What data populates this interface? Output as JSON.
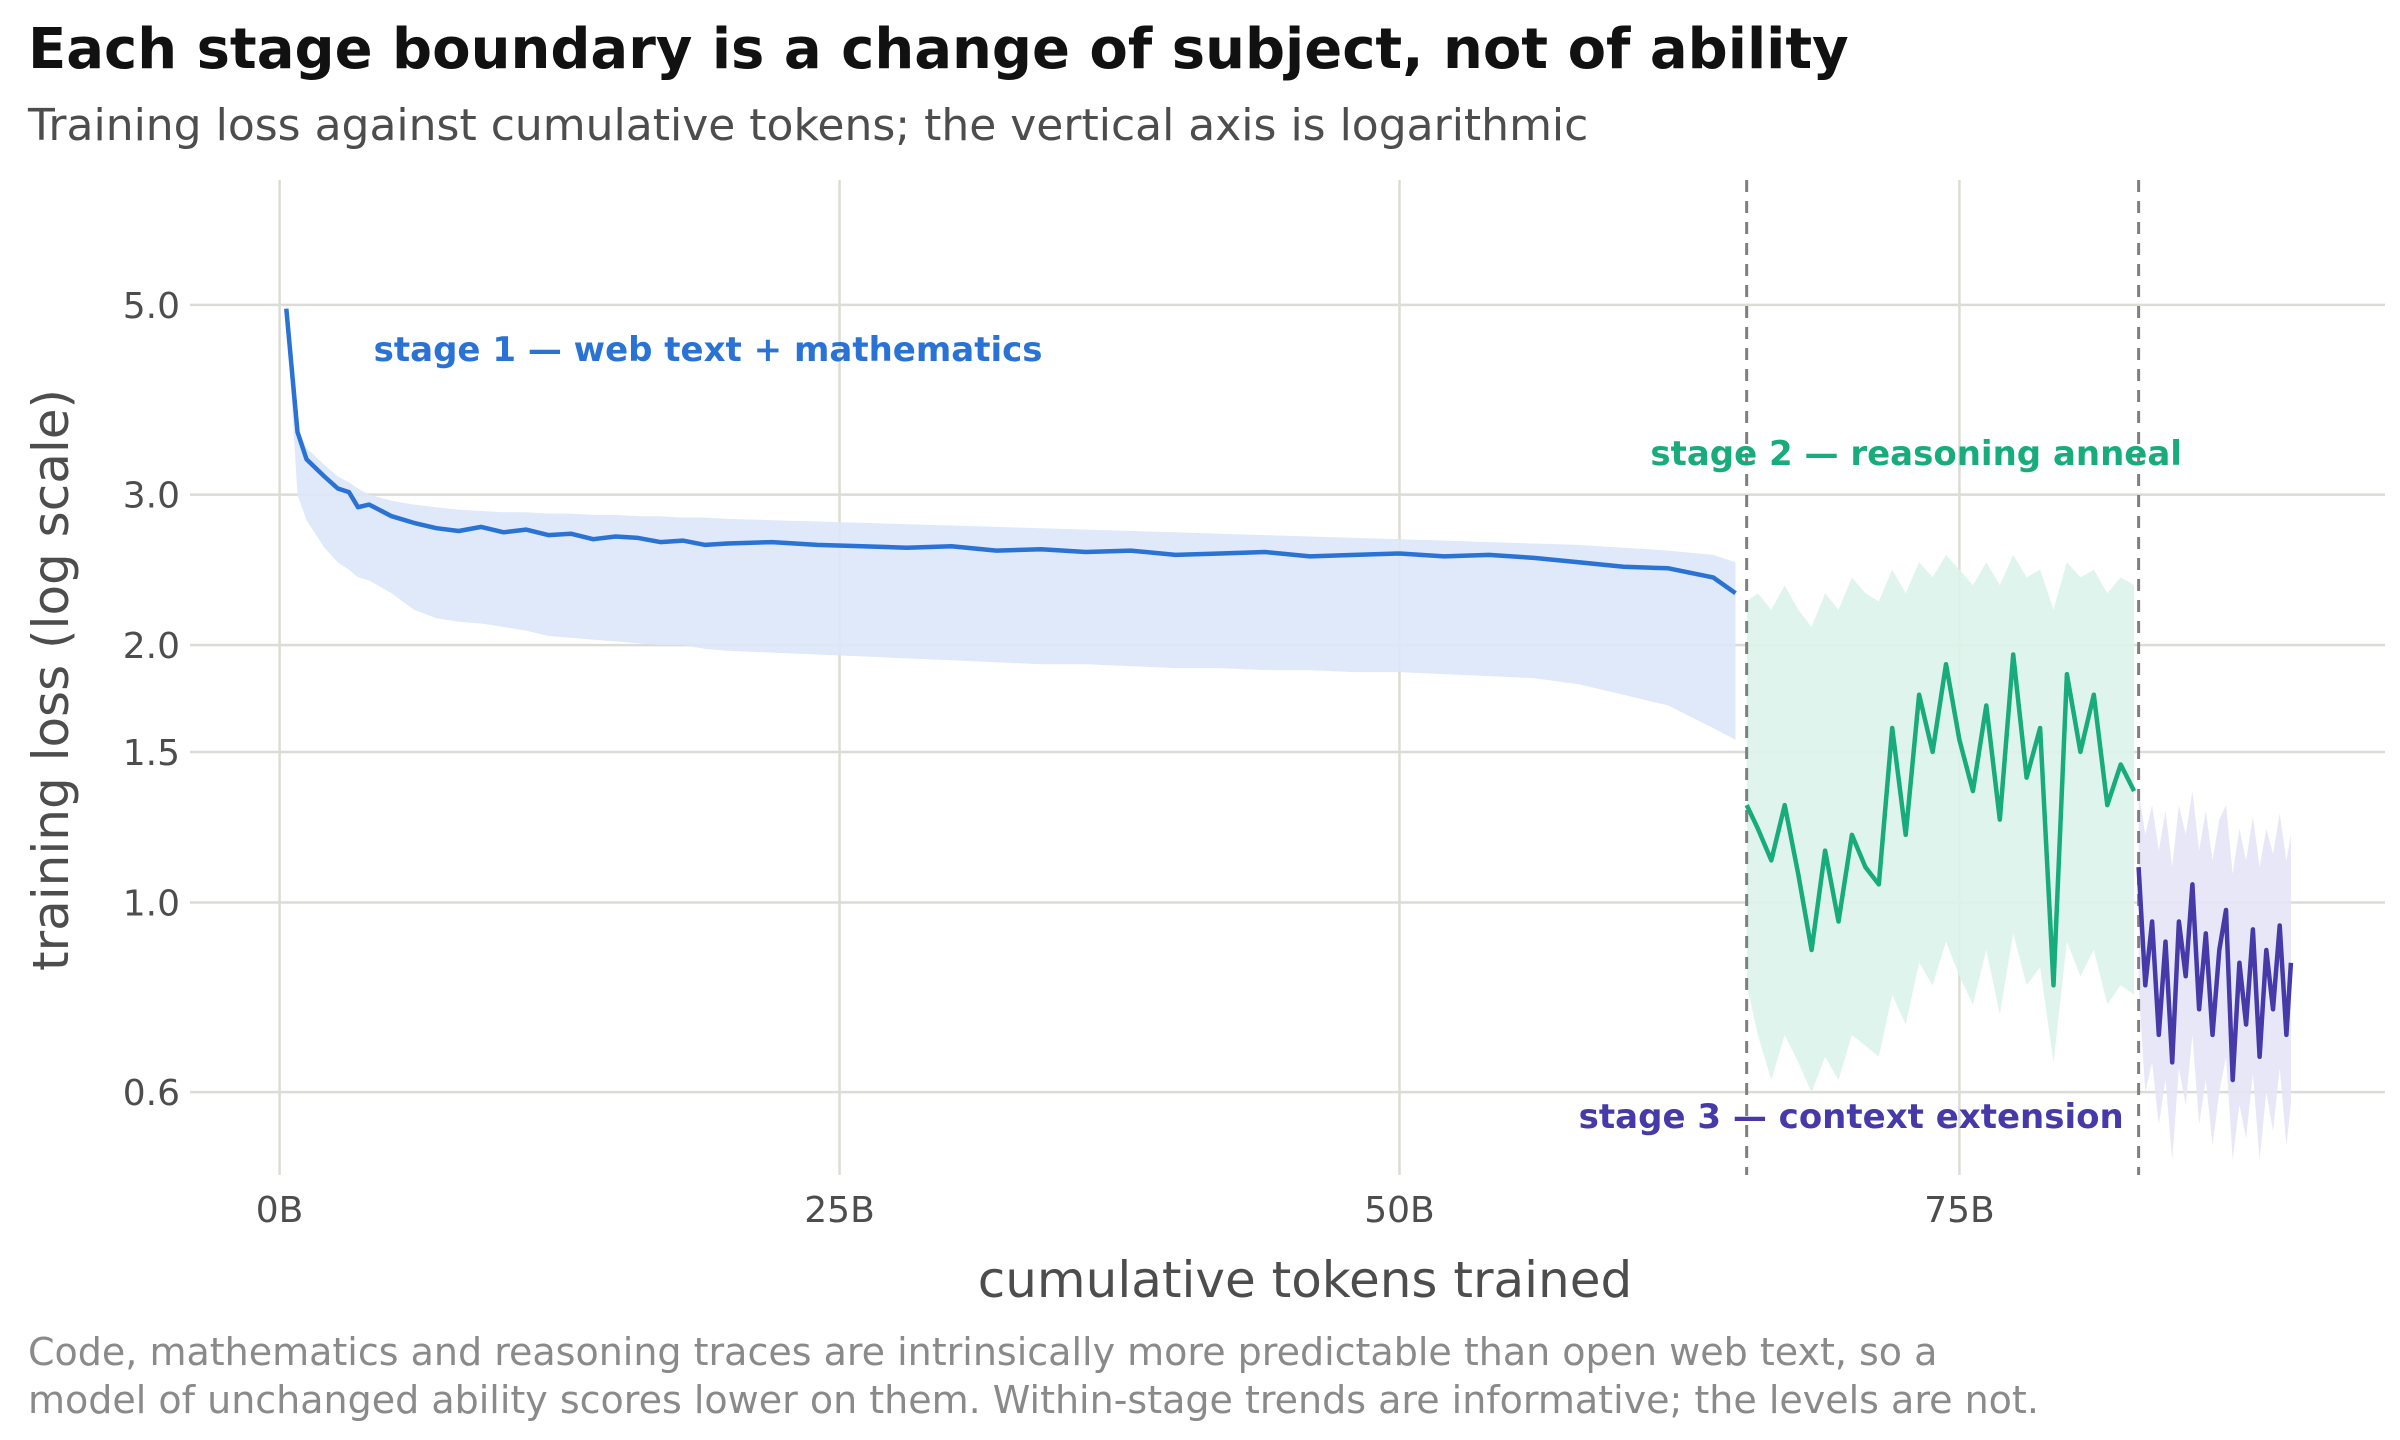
{
  "chart_data": {
    "type": "line",
    "title": "Each stage boundary is a change of subject, not of ability",
    "subtitle": "Training loss against cumulative tokens; the vertical axis is logarithmic",
    "xlabel": "cumulative tokens trained",
    "ylabel": "training loss (log scale)",
    "x_unit": "billion tokens",
    "xlim": [
      -4,
      94
    ],
    "ylim": [
      0.48,
      7.0
    ],
    "y_scale": "log",
    "x_ticks": [
      0,
      25,
      50,
      75
    ],
    "x_tick_labels": [
      "0B",
      "25B",
      "50B",
      "75B"
    ],
    "y_ticks": [
      0.6,
      1.0,
      1.5,
      2.0,
      3.0,
      5.0
    ],
    "y_tick_labels": [
      "0.6",
      "1.0",
      "1.5",
      "2.0",
      "3.0",
      "5.0"
    ],
    "grid": true,
    "stage_boundaries": [
      65.5,
      83
    ],
    "series": [
      {
        "name": "stage 1 — web text + mathematics",
        "color": "#2a72d4",
        "band_color": "#dbe7f8",
        "x": [
          0.3,
          0.8,
          1.2,
          2.0,
          2.6,
          3.1,
          3.5,
          4.0,
          5.0,
          6.0,
          7.0,
          8.0,
          9.0,
          10.0,
          11.0,
          12.0,
          13.0,
          14.0,
          15.0,
          16.0,
          17.0,
          18.0,
          19.0,
          20.0,
          22.0,
          24.0,
          26.0,
          28.0,
          30.0,
          32.0,
          34.0,
          36.0,
          38.0,
          40.0,
          42.0,
          44.0,
          46.0,
          48.0,
          50.0,
          52.0,
          54.0,
          56.0,
          58.0,
          60.0,
          62.0,
          64.0,
          65.0
        ],
        "y": [
          4.95,
          3.55,
          3.3,
          3.15,
          3.05,
          3.02,
          2.9,
          2.92,
          2.83,
          2.78,
          2.74,
          2.72,
          2.75,
          2.71,
          2.73,
          2.69,
          2.7,
          2.66,
          2.68,
          2.67,
          2.64,
          2.65,
          2.62,
          2.63,
          2.64,
          2.62,
          2.61,
          2.6,
          2.61,
          2.58,
          2.59,
          2.57,
          2.58,
          2.55,
          2.56,
          2.57,
          2.54,
          2.55,
          2.56,
          2.54,
          2.55,
          2.53,
          2.5,
          2.47,
          2.46,
          2.4,
          2.3
        ],
        "y_low": [
          4.9,
          3.0,
          2.8,
          2.6,
          2.5,
          2.45,
          2.4,
          2.38,
          2.3,
          2.2,
          2.15,
          2.13,
          2.12,
          2.1,
          2.08,
          2.05,
          2.04,
          2.03,
          2.02,
          2.01,
          2.0,
          2.0,
          1.98,
          1.97,
          1.96,
          1.95,
          1.94,
          1.93,
          1.92,
          1.91,
          1.9,
          1.9,
          1.89,
          1.88,
          1.88,
          1.87,
          1.87,
          1.86,
          1.86,
          1.85,
          1.84,
          1.83,
          1.8,
          1.75,
          1.7,
          1.6,
          1.55
        ],
        "y_high": [
          5.0,
          3.6,
          3.4,
          3.25,
          3.15,
          3.1,
          3.05,
          3.0,
          2.95,
          2.92,
          2.9,
          2.88,
          2.87,
          2.86,
          2.86,
          2.85,
          2.85,
          2.84,
          2.84,
          2.83,
          2.83,
          2.82,
          2.82,
          2.81,
          2.8,
          2.79,
          2.78,
          2.77,
          2.76,
          2.75,
          2.74,
          2.73,
          2.72,
          2.71,
          2.7,
          2.69,
          2.68,
          2.67,
          2.66,
          2.65,
          2.64,
          2.63,
          2.62,
          2.6,
          2.58,
          2.55,
          2.5
        ]
      },
      {
        "name": "stage 2 — reasoning anneal",
        "color": "#18ac7c",
        "band_color": "#dbf3ea",
        "x": [
          65.5,
          66.0,
          66.6,
          67.2,
          67.8,
          68.4,
          69.0,
          69.6,
          70.2,
          70.8,
          71.4,
          72.0,
          72.6,
          73.2,
          73.8,
          74.4,
          75.0,
          75.6,
          76.2,
          76.8,
          77.4,
          78.0,
          78.6,
          79.2,
          79.8,
          80.4,
          81.0,
          81.6,
          82.2,
          82.8
        ],
        "y": [
          1.3,
          1.22,
          1.12,
          1.3,
          1.08,
          0.88,
          1.15,
          0.95,
          1.2,
          1.1,
          1.05,
          1.6,
          1.2,
          1.75,
          1.5,
          1.9,
          1.55,
          1.35,
          1.7,
          1.25,
          1.95,
          1.4,
          1.6,
          0.8,
          1.85,
          1.5,
          1.75,
          1.3,
          1.45,
          1.35
        ],
        "y_low": [
          0.8,
          0.7,
          0.62,
          0.7,
          0.65,
          0.6,
          0.66,
          0.62,
          0.7,
          0.68,
          0.66,
          0.78,
          0.72,
          0.85,
          0.8,
          0.9,
          0.82,
          0.76,
          0.88,
          0.74,
          0.92,
          0.8,
          0.84,
          0.65,
          0.9,
          0.82,
          0.88,
          0.76,
          0.8,
          0.78
        ],
        "y_high": [
          2.25,
          2.3,
          2.2,
          2.35,
          2.2,
          2.1,
          2.3,
          2.2,
          2.4,
          2.3,
          2.25,
          2.45,
          2.3,
          2.5,
          2.4,
          2.55,
          2.45,
          2.35,
          2.5,
          2.35,
          2.55,
          2.4,
          2.45,
          2.2,
          2.5,
          2.4,
          2.45,
          2.3,
          2.4,
          2.35
        ]
      },
      {
        "name": "stage 3 — context extension",
        "color": "#4639a8",
        "band_color": "#e6e4f6",
        "x": [
          83.0,
          83.3,
          83.6,
          83.9,
          84.2,
          84.5,
          84.8,
          85.1,
          85.4,
          85.7,
          86.0,
          86.3,
          86.6,
          86.9,
          87.2,
          87.5,
          87.8,
          88.1,
          88.4,
          88.7,
          89.0,
          89.3,
          89.6,
          89.8
        ],
        "y": [
          1.1,
          0.8,
          0.95,
          0.7,
          0.9,
          0.65,
          0.95,
          0.82,
          1.05,
          0.75,
          0.92,
          0.7,
          0.88,
          0.98,
          0.62,
          0.85,
          0.72,
          0.93,
          0.66,
          0.88,
          0.75,
          0.94,
          0.7,
          0.85
        ],
        "y_low": [
          0.8,
          0.6,
          0.65,
          0.55,
          0.62,
          0.5,
          0.64,
          0.58,
          0.7,
          0.55,
          0.62,
          0.52,
          0.6,
          0.66,
          0.5,
          0.58,
          0.53,
          0.63,
          0.5,
          0.6,
          0.54,
          0.64,
          0.52,
          0.58
        ],
        "y_high": [
          1.35,
          1.2,
          1.3,
          1.15,
          1.28,
          1.1,
          1.3,
          1.2,
          1.35,
          1.15,
          1.28,
          1.12,
          1.25,
          1.3,
          1.08,
          1.22,
          1.12,
          1.26,
          1.1,
          1.22,
          1.14,
          1.27,
          1.12,
          1.2
        ]
      }
    ],
    "annotations": [
      {
        "text": "stage 1 — web text + mathematics",
        "x": 4.2,
        "y": 4.3,
        "color": "#2a72d4"
      },
      {
        "text": "stage 2 — reasoning anneal",
        "x": 61.2,
        "y": 3.25,
        "color": "#18ac7c"
      },
      {
        "text": "stage 3 — context extension",
        "x": 58.0,
        "y": 0.545,
        "color": "#4639a8"
      }
    ],
    "footnote_lines": [
      "Code, mathematics and reasoning traces are intrinsically more predictable than open web text, so a",
      "model of unchanged ability scores lower on them. Within-stage trends are informative; the levels are not."
    ]
  }
}
